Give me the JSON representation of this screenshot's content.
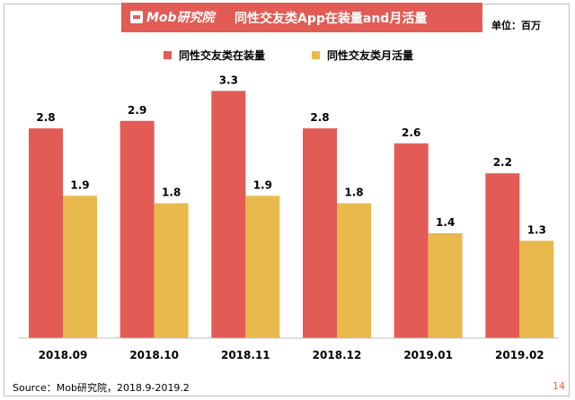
{
  "header": {
    "brand": "Mob研究院",
    "title": "同性交友类App在装量and月活量",
    "unit": "单位：百万"
  },
  "colors": {
    "accent": "#e35b55",
    "series1": "#e35b55",
    "series2": "#e8ba4e"
  },
  "chart_data": {
    "type": "bar",
    "title": "同性交友类App在装量and月活量",
    "categories": [
      "2018.09",
      "2018.10",
      "2018.11",
      "2018.12",
      "2019.01",
      "2019.02"
    ],
    "series": [
      {
        "name": "同性交友类在装量",
        "values": [
          2.8,
          2.9,
          3.3,
          2.8,
          2.6,
          2.2
        ]
      },
      {
        "name": "同性交友类月活量",
        "values": [
          1.9,
          1.8,
          1.9,
          1.8,
          1.4,
          1.3
        ]
      }
    ],
    "xlabel": "",
    "ylabel": "",
    "ylim": [
      0,
      3.4
    ],
    "grid": false,
    "legend": "top-center"
  },
  "footer": {
    "source": "Source：Mob研究院，2018.9-2019.2",
    "page": "14"
  }
}
